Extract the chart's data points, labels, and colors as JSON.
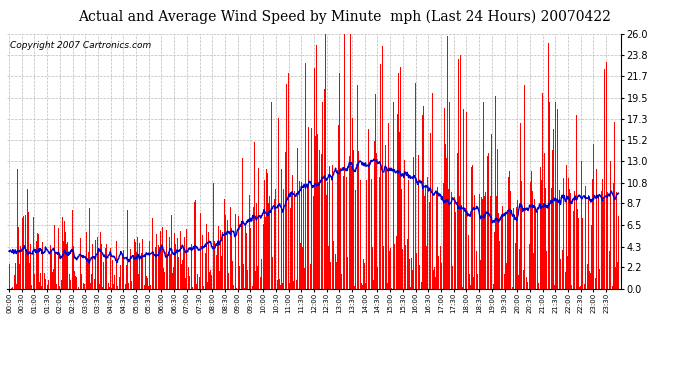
{
  "title": "Actual and Average Wind Speed by Minute  mph (Last 24 Hours) 20070422",
  "copyright": "Copyright 2007 Cartronics.com",
  "yticks": [
    0.0,
    2.2,
    4.3,
    6.5,
    8.7,
    10.8,
    13.0,
    15.2,
    17.3,
    19.5,
    21.7,
    23.8,
    26.0
  ],
  "ymax": 26.0,
  "ymin": 0.0,
  "bar_color": "#ff0000",
  "line_color": "#0000cc",
  "background_color": "#ffffff",
  "grid_color": "#bbbbbb",
  "title_fontsize": 10,
  "copyright_fontsize": 6.5
}
